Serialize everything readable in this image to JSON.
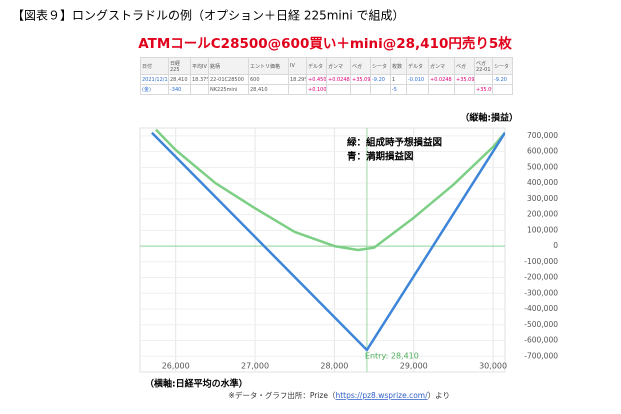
{
  "header": {
    "title": "【図表９】ロングストラドルの例（オプション＋日経 225mini で組成）"
  },
  "table": {
    "columns": [
      "日付",
      "日経225",
      "平均IV",
      "銘柄",
      "エントリ価格",
      "IV",
      "デルタ",
      "ガンマ",
      "ベガ",
      "シータ",
      "枚数",
      "デルタ",
      "ガンマ",
      "ベガ",
      "ベガ22-01",
      "シータ"
    ],
    "rows": [
      [
        "2021/12/10",
        "28,410",
        "18.37%",
        "22-01C28500",
        "600",
        "18.29%",
        "+0.450",
        "+0.0248",
        "+35.09",
        "-9.20",
        "1",
        "-0.010",
        "+0.0248",
        "+35.09",
        null,
        "-9.20"
      ],
      [
        "(金)",
        "-340",
        null,
        "NK225mini",
        "28,410",
        null,
        "+0.100",
        null,
        null,
        null,
        "-5",
        null,
        null,
        null,
        "+35.09",
        null
      ]
    ]
  },
  "chart_data": {
    "type": "line",
    "title": "ATMコールC28500@600買い＋mini@28,410円売り5枚",
    "y_label": "（縦軸:損益）",
    "x_label": "（横軸:日経平均の水準）",
    "series": [
      {
        "name": "緑：組成時予想損益図",
        "color": "#7dcf86",
        "x": [
          25750,
          26000,
          26500,
          27000,
          27500,
          28000,
          28300,
          28500,
          29000,
          29500,
          30000,
          30150
        ],
        "values": [
          740000,
          610000,
          400000,
          240000,
          90000,
          0,
          -25000,
          -10000,
          180000,
          390000,
          630000,
          720000
        ]
      },
      {
        "name": "青：満期損益図",
        "color": "#3d85d8",
        "x": [
          25700,
          28410,
          30150
        ],
        "values": [
          720000,
          -660000,
          720000
        ]
      }
    ],
    "entry": {
      "x": 28410,
      "label": "Entry: 28,410"
    },
    "xlim": [
      25550,
      30150
    ],
    "ylim": [
      -800000,
      750000
    ],
    "xticks": [
      {
        "value": 26000,
        "label": "26,000"
      },
      {
        "value": 27000,
        "label": "27,000"
      },
      {
        "value": 28000,
        "label": "28,000"
      },
      {
        "value": 29000,
        "label": "29,000"
      },
      {
        "value": 30000,
        "label": "30,000"
      }
    ],
    "yticks": [
      {
        "value": -700000,
        "label": "-700,000"
      },
      {
        "value": -600000,
        "label": "-600,000"
      },
      {
        "value": -500000,
        "label": "-500,000"
      },
      {
        "value": -400000,
        "label": "-400,000"
      },
      {
        "value": -300000,
        "label": "-300,000"
      },
      {
        "value": -200000,
        "label": "-200,000"
      },
      {
        "value": -100000,
        "label": "-100,000"
      },
      0,
      {
        "value": 100000,
        "label": "100,000"
      },
      {
        "value": 200000,
        "label": "200,000"
      },
      {
        "value": 300000,
        "label": "300,000"
      },
      {
        "value": 400000,
        "label": "400,000"
      },
      {
        "value": 500000,
        "label": "500,000"
      },
      {
        "value": 600000,
        "label": "600,000"
      },
      {
        "value": 700000,
        "label": "700,000"
      }
    ],
    "grid": true
  },
  "footer": {
    "prefix": "※データ・グラフ出所：Prize（",
    "link": "https://pz8.wsprize.com/",
    "suffix": "）より"
  }
}
